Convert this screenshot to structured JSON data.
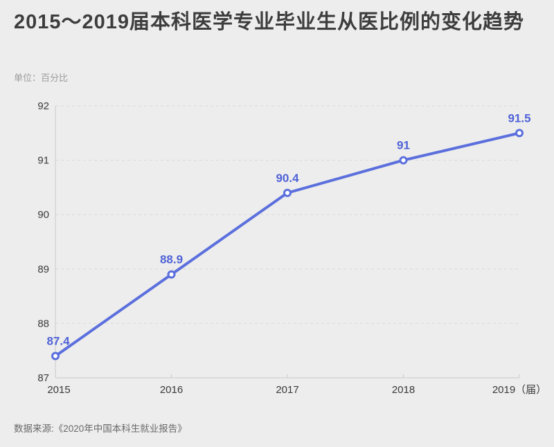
{
  "page": {
    "background": "#ededed"
  },
  "header": {
    "title": "2015～2019届本科医学专业毕业生从医比例的变化趋势",
    "unit": "单位：百分比"
  },
  "chart_data": {
    "type": "line",
    "title": "2015～2019届本科医学专业毕业生从医比例的变化趋势",
    "ylabel": "百分比",
    "categories": [
      "2015",
      "2016",
      "2017",
      "2018",
      "2019（届）"
    ],
    "values": [
      87.4,
      88.9,
      90.4,
      91,
      91.5
    ],
    "point_labels": [
      "87.4",
      "88.9",
      "90.4",
      "91",
      "91.5"
    ],
    "ylim": [
      87,
      92
    ],
    "ytick_step": 1,
    "grid": "dashed-horizontal",
    "legend": "none",
    "colors": {
      "line": "#5b6fdd",
      "point_fill": "#ffffff",
      "point_label": "#4f62d6",
      "axis": "#c9c9c9",
      "grid": "#d9d9d9",
      "tick_text": "#3a3a3a"
    }
  },
  "footer": {
    "source": "数据来源:《2020年中国本科生就业报告》"
  }
}
